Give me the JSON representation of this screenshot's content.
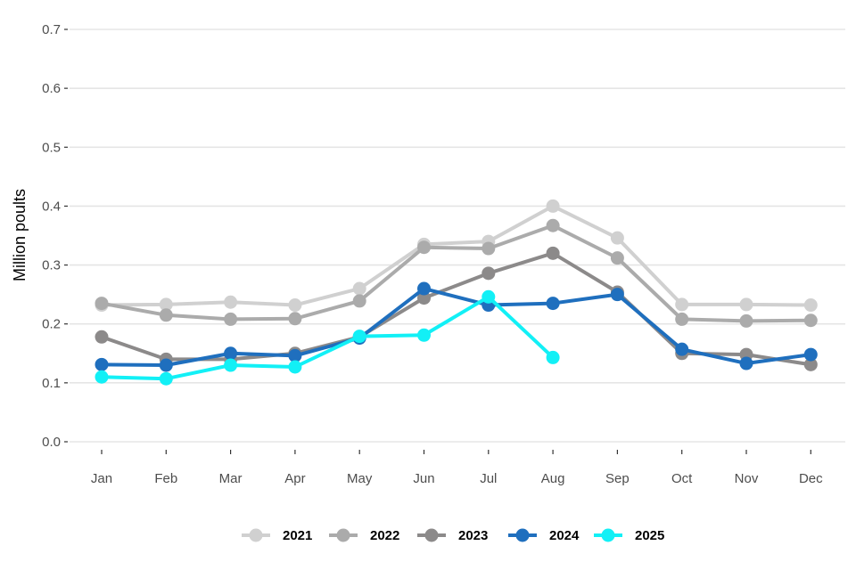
{
  "chart_data": {
    "type": "line",
    "title": "",
    "xlabel": "",
    "ylabel": "Million poults",
    "categories": [
      "Jan",
      "Feb",
      "Mar",
      "Apr",
      "May",
      "Jun",
      "Jul",
      "Aug",
      "Sep",
      "Oct",
      "Nov",
      "Dec"
    ],
    "y_ticks": [
      "0.0",
      "0.1",
      "0.2",
      "0.3",
      "0.4",
      "0.5",
      "0.6",
      "0.7"
    ],
    "ylim": [
      0,
      0.7
    ],
    "grid": "horizontal",
    "legend_position": "bottom",
    "series": [
      {
        "name": "2021",
        "color": "#d0d0d0",
        "values": [
          0.232,
          0.233,
          0.237,
          0.232,
          0.26,
          0.335,
          0.34,
          0.4,
          0.346,
          0.233,
          0.233,
          0.232
        ]
      },
      {
        "name": "2022",
        "color": "#ababab",
        "values": [
          0.235,
          0.215,
          0.208,
          0.209,
          0.239,
          0.33,
          0.328,
          0.367,
          0.312,
          0.208,
          0.205,
          0.206
        ]
      },
      {
        "name": "2023",
        "color": "#8c8a8a",
        "values": [
          0.178,
          0.14,
          0.14,
          0.15,
          0.178,
          0.244,
          0.286,
          0.32,
          0.254,
          0.15,
          0.148,
          0.131
        ]
      },
      {
        "name": "2024",
        "color": "#1f6fbe",
        "values": [
          0.131,
          0.13,
          0.15,
          0.146,
          0.176,
          0.26,
          0.232,
          0.235,
          0.25,
          0.157,
          0.133,
          0.148
        ]
      },
      {
        "name": "2025",
        "color": "#12f0f6",
        "values": [
          0.11,
          0.107,
          0.13,
          0.127,
          0.179,
          0.181,
          0.246,
          0.143,
          null,
          null,
          null,
          null
        ]
      }
    ]
  }
}
